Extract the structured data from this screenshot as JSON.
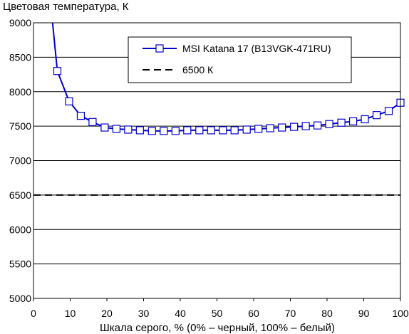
{
  "chart_data": {
    "type": "line",
    "ylabel": "Цветовая температура, К",
    "xlabel": "Шкала серого, % (0% – черный, 100% – белый)",
    "xlim": [
      0,
      100
    ],
    "ylim": [
      5000,
      9000
    ],
    "xticks": [
      0,
      10,
      20,
      30,
      40,
      50,
      60,
      70,
      80,
      90,
      100
    ],
    "yticks": [
      5000,
      5500,
      6000,
      6500,
      7000,
      7500,
      8000,
      8500,
      9000
    ],
    "grid": "horizontal",
    "legend_position": "top-right",
    "series": [
      {
        "name": "MSI Katana 17 (B13VGK-471RU)",
        "color": "#0000cc",
        "marker": "square",
        "x": [
          6.5,
          9.7,
          12.9,
          16.1,
          19.4,
          22.6,
          25.8,
          29.0,
          32.3,
          35.5,
          38.7,
          41.9,
          45.2,
          48.4,
          51.6,
          54.8,
          58.1,
          61.3,
          64.5,
          67.7,
          71.0,
          74.2,
          77.4,
          80.6,
          83.9,
          87.1,
          90.3,
          93.5,
          96.8,
          100
        ],
        "values": [
          8300,
          7860,
          7650,
          7560,
          7480,
          7460,
          7450,
          7440,
          7430,
          7430,
          7430,
          7440,
          7440,
          7440,
          7440,
          7440,
          7450,
          7460,
          7470,
          7480,
          7490,
          7500,
          7510,
          7530,
          7550,
          7570,
          7600,
          7660,
          7720,
          7840
        ]
      },
      {
        "name": "6500 К",
        "color": "#000000",
        "style": "dashed",
        "x": [
          0,
          100
        ],
        "values": [
          6500,
          6500
        ]
      }
    ],
    "offscale_start": {
      "x": 5.2,
      "value": 9000
    }
  }
}
